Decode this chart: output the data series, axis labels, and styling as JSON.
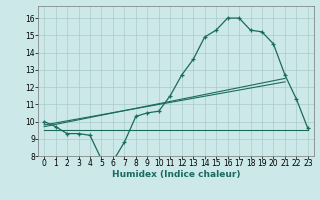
{
  "xlabel": "Humidex (Indice chaleur)",
  "bg_color": "#cce8e8",
  "line_color": "#1a6b5e",
  "grid_color": "#aacccc",
  "xlim": [
    -0.5,
    23.5
  ],
  "ylim": [
    8.0,
    16.7
  ],
  "xticks": [
    0,
    1,
    2,
    3,
    4,
    5,
    6,
    7,
    8,
    9,
    10,
    11,
    12,
    13,
    14,
    15,
    16,
    17,
    18,
    19,
    20,
    21,
    22,
    23
  ],
  "yticks": [
    8,
    9,
    10,
    11,
    12,
    13,
    14,
    15,
    16
  ],
  "line1_x": [
    0,
    1,
    2,
    3,
    4,
    5,
    6,
    7,
    8,
    9,
    10,
    11,
    12,
    13,
    14,
    15,
    16,
    17,
    18,
    19,
    20,
    21,
    22,
    23
  ],
  "line1_y": [
    10.0,
    9.7,
    9.3,
    9.3,
    9.2,
    7.8,
    7.7,
    8.8,
    10.3,
    10.5,
    10.6,
    11.5,
    12.7,
    13.6,
    14.9,
    15.3,
    16.0,
    16.0,
    15.3,
    15.2,
    14.5,
    12.7,
    11.3,
    9.6
  ],
  "line2_x": [
    0,
    23
  ],
  "line2_y": [
    9.5,
    9.5
  ],
  "line3_x": [
    0,
    21
  ],
  "line3_y": [
    9.7,
    12.5
  ],
  "line4_x": [
    0,
    21
  ],
  "line4_y": [
    9.8,
    12.3
  ],
  "xlabel_fontsize": 6.5,
  "tick_fontsize": 5.5
}
